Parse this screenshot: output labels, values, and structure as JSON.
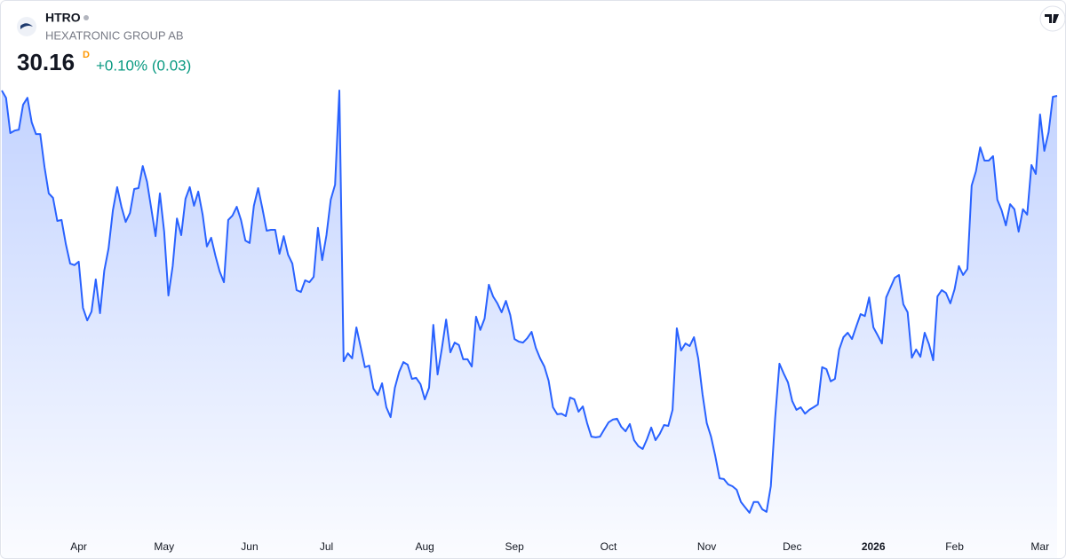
{
  "chart_data": {
    "type": "area",
    "symbol": "HTRO",
    "company": "HEXATRONIC GROUP AB",
    "price": "30.16",
    "interval": "D",
    "change": "+0.10% (0.03)",
    "color": "#2962ff",
    "change_color": "#089981",
    "xlim": [
      0,
      247
    ],
    "ylim": [
      16.2,
      31.2
    ],
    "xticks": [
      {
        "value": 18,
        "label": "Apr"
      },
      {
        "value": 38,
        "label": "May"
      },
      {
        "value": 58,
        "label": "Jun"
      },
      {
        "value": 76,
        "label": "Jul"
      },
      {
        "value": 99,
        "label": "Aug"
      },
      {
        "value": 120,
        "label": "Sep"
      },
      {
        "value": 142,
        "label": "Oct"
      },
      {
        "value": 165,
        "label": "Nov"
      },
      {
        "value": 185,
        "label": "Dec"
      },
      {
        "value": 204,
        "label": "2026"
      },
      {
        "value": 223,
        "label": "Feb"
      },
      {
        "value": 243,
        "label": "Mar"
      }
    ],
    "values": [
      30.33,
      30.1,
      28.98,
      29.06,
      29.09,
      29.88,
      30.1,
      29.32,
      28.95,
      28.95,
      27.91,
      27.07,
      26.93,
      26.2,
      26.23,
      25.47,
      24.85,
      24.8,
      24.91,
      23.45,
      23.05,
      23.33,
      24.35,
      23.28,
      24.63,
      25.33,
      26.54,
      27.27,
      26.65,
      26.17,
      26.45,
      27.21,
      27.24,
      27.94,
      27.44,
      26.59,
      25.72,
      27.07,
      25.86,
      23.84,
      24.77,
      26.28,
      25.75,
      26.9,
      27.27,
      26.68,
      27.13,
      26.4,
      25.39,
      25.67,
      25.1,
      24.6,
      24.26,
      26.23,
      26.37,
      26.65,
      26.23,
      25.58,
      25.5,
      26.68,
      27.24,
      26.59,
      25.89,
      25.92,
      25.92,
      25.16,
      25.72,
      25.13,
      24.85,
      24.01,
      23.95,
      24.32,
      24.26,
      24.43,
      25.98,
      24.96,
      25.75,
      26.87,
      27.35,
      30.33,
      21.76,
      22.01,
      21.85,
      22.83,
      22.21,
      21.57,
      21.62,
      20.89,
      20.69,
      21.06,
      20.3,
      19.99,
      20.92,
      21.42,
      21.73,
      21.65,
      21.2,
      21.23,
      21.03,
      20.55,
      20.92,
      22.91,
      21.34,
      22.16,
      23.08,
      22.04,
      22.35,
      22.27,
      21.82,
      21.82,
      21.59,
      23.17,
      22.75,
      23.11,
      24.18,
      23.81,
      23.59,
      23.31,
      23.67,
      23.22,
      22.46,
      22.38,
      22.35,
      22.49,
      22.69,
      22.18,
      21.85,
      21.59,
      21.14,
      20.3,
      20.08,
      20.1,
      20.02,
      20.61,
      20.55,
      20.16,
      20.33,
      19.8,
      19.37,
      19.35,
      19.37,
      19.6,
      19.82,
      19.91,
      19.94,
      19.68,
      19.54,
      19.77,
      19.26,
      19.07,
      18.98,
      19.29,
      19.66,
      19.26,
      19.46,
      19.74,
      19.71,
      20.22,
      22.8,
      22.1,
      22.32,
      22.24,
      22.52,
      21.85,
      20.72,
      19.8,
      19.37,
      18.76,
      18.05,
      18.03,
      17.86,
      17.8,
      17.69,
      17.3,
      17.13,
      16.96,
      17.3,
      17.3,
      17.07,
      16.99,
      17.8,
      19.96,
      21.68,
      21.37,
      21.09,
      20.5,
      20.22,
      20.3,
      20.1,
      20.22,
      20.3,
      20.39,
      21.57,
      21.51,
      21.12,
      21.2,
      22.13,
      22.52,
      22.66,
      22.46,
      22.86,
      23.25,
      23.19,
      23.78,
      22.83,
      22.58,
      22.32,
      23.78,
      24.09,
      24.4,
      24.49,
      23.56,
      23.31,
      21.87,
      22.13,
      21.9,
      22.66,
      22.3,
      21.79,
      23.81,
      24.01,
      23.92,
      23.59,
      24.04,
      24.77,
      24.49,
      24.68,
      27.32,
      27.77,
      28.53,
      28.11,
      28.11,
      28.25,
      26.87,
      26.54,
      26.06,
      26.73,
      26.57,
      25.86,
      26.57,
      26.4,
      27.97,
      27.69,
      29.57,
      28.42,
      29.01,
      30.13,
      30.16
    ]
  }
}
